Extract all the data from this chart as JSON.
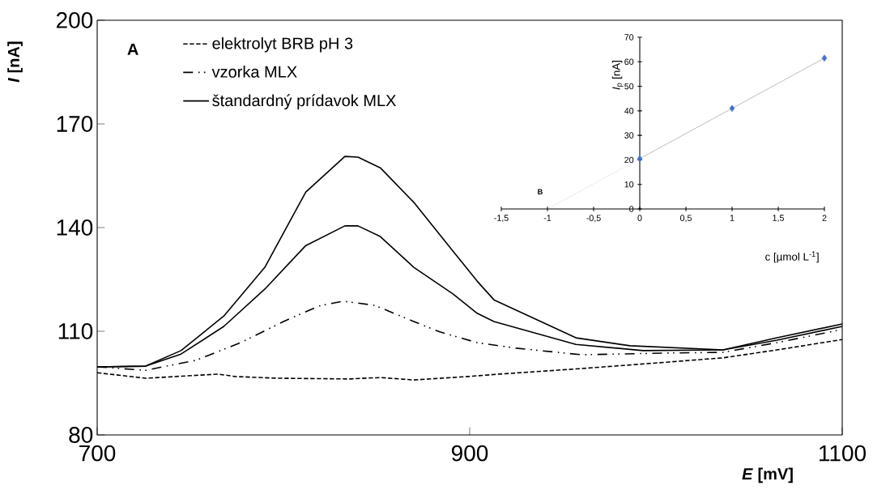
{
  "chart_data": [
    {
      "type": "line",
      "xlabel": "*E* [mV]",
      "ylabel": "*I* [nA]",
      "annotations": [
        "A"
      ],
      "xlim": [
        700,
        1100
      ],
      "xticks": [
        700,
        900,
        1100
      ],
      "ylim": [
        80,
        200
      ],
      "yticks": [
        80,
        110,
        140,
        170,
        200
      ],
      "legend": "top left",
      "marker": "none",
      "series": [
        {
          "name": "elektrolyt BRB pH 3",
          "color": "#000000",
          "line_style": "dashed",
          "x": [
            700,
            726,
            765,
            774,
            797,
            835,
            852,
            870,
            899,
            916,
            960,
            1007,
            1036,
            1065,
            1100
          ],
          "values": [
            98.0,
            96.4,
            97.6,
            96.9,
            96.4,
            96.2,
            96.6,
            95.9,
            96.9,
            97.6,
            99.2,
            101.1,
            102.3,
            104.6,
            107.6
          ]
        },
        {
          "name": "vzorka MLX",
          "color": "#000000",
          "line_style": "dashdot",
          "x": [
            700,
            726,
            753,
            777,
            800,
            819,
            832,
            849,
            870,
            884,
            904,
            925,
            960,
            1007,
            1036,
            1065,
            1100
          ],
          "values": [
            99.7,
            98.7,
            101.6,
            106.7,
            112.8,
            117.3,
            118.7,
            117.5,
            112.8,
            109.8,
            106.7,
            105.1,
            103.2,
            103.7,
            103.9,
            106.7,
            110.5
          ]
        },
        {
          "name": "štandardný prídavok MLX",
          "color": "#000000",
          "line_style": "solid",
          "x": [
            700,
            726,
            745,
            768,
            790,
            812,
            833,
            840,
            852,
            870,
            891,
            904,
            913,
            957,
            986,
            1036,
            1065,
            1100
          ],
          "values": [
            99.7,
            99.9,
            104.4,
            114.4,
            128.5,
            150.3,
            160.6,
            160.4,
            157.3,
            147.3,
            133.2,
            124.5,
            119.1,
            108.1,
            105.8,
            104.6,
            108.1,
            112.1
          ]
        },
        {
          "color": "#000000",
          "line_style": "solid",
          "x": [
            700,
            726,
            745,
            768,
            790,
            812,
            833,
            840,
            852,
            870,
            891,
            904,
            913,
            957,
            993,
            1036,
            1065,
            1100
          ],
          "values": [
            99.7,
            99.9,
            103.4,
            111.4,
            122.2,
            134.8,
            140.5,
            140.5,
            137.4,
            128.5,
            120.8,
            115.2,
            112.8,
            106.2,
            104.4,
            104.6,
            107.4,
            111.4
          ]
        }
      ]
    },
    {
      "type": "scatter",
      "xlabel": "c [µmol L$^{-1}$]",
      "ylabel": "*I*$_{p}$ [nA]",
      "annotations": [
        "B"
      ],
      "xlim": [
        -1.5,
        2
      ],
      "xticks": [
        {
          "value": -1.5,
          "label": "-1,5"
        },
        -1,
        {
          "value": -0.5,
          "label": "-0,5"
        },
        0,
        {
          "value": 0.5,
          "label": "0,5"
        },
        1,
        {
          "value": 1.5,
          "label": "1,5"
        },
        2
      ],
      "ylim": [
        0,
        70
      ],
      "yticks": [
        0,
        10,
        20,
        30,
        40,
        50,
        60,
        70
      ],
      "series": [
        {
          "type": "line",
          "color": "#808080",
          "line_style": "solid",
          "marker": "none",
          "x": [
            0,
            2
          ],
          "values": [
            20.5,
            61.5
          ]
        },
        {
          "type": "line",
          "color": "#808080",
          "line_style": "dotted",
          "marker": "none",
          "x": [
            -1,
            0
          ],
          "values": [
            0,
            20.5
          ]
        },
        {
          "type": "scatter",
          "color": "#4472c4",
          "marker": "diamond",
          "x": [
            0,
            1,
            2
          ],
          "values": [
            20.5,
            41,
            61.5
          ]
        }
      ]
    }
  ]
}
